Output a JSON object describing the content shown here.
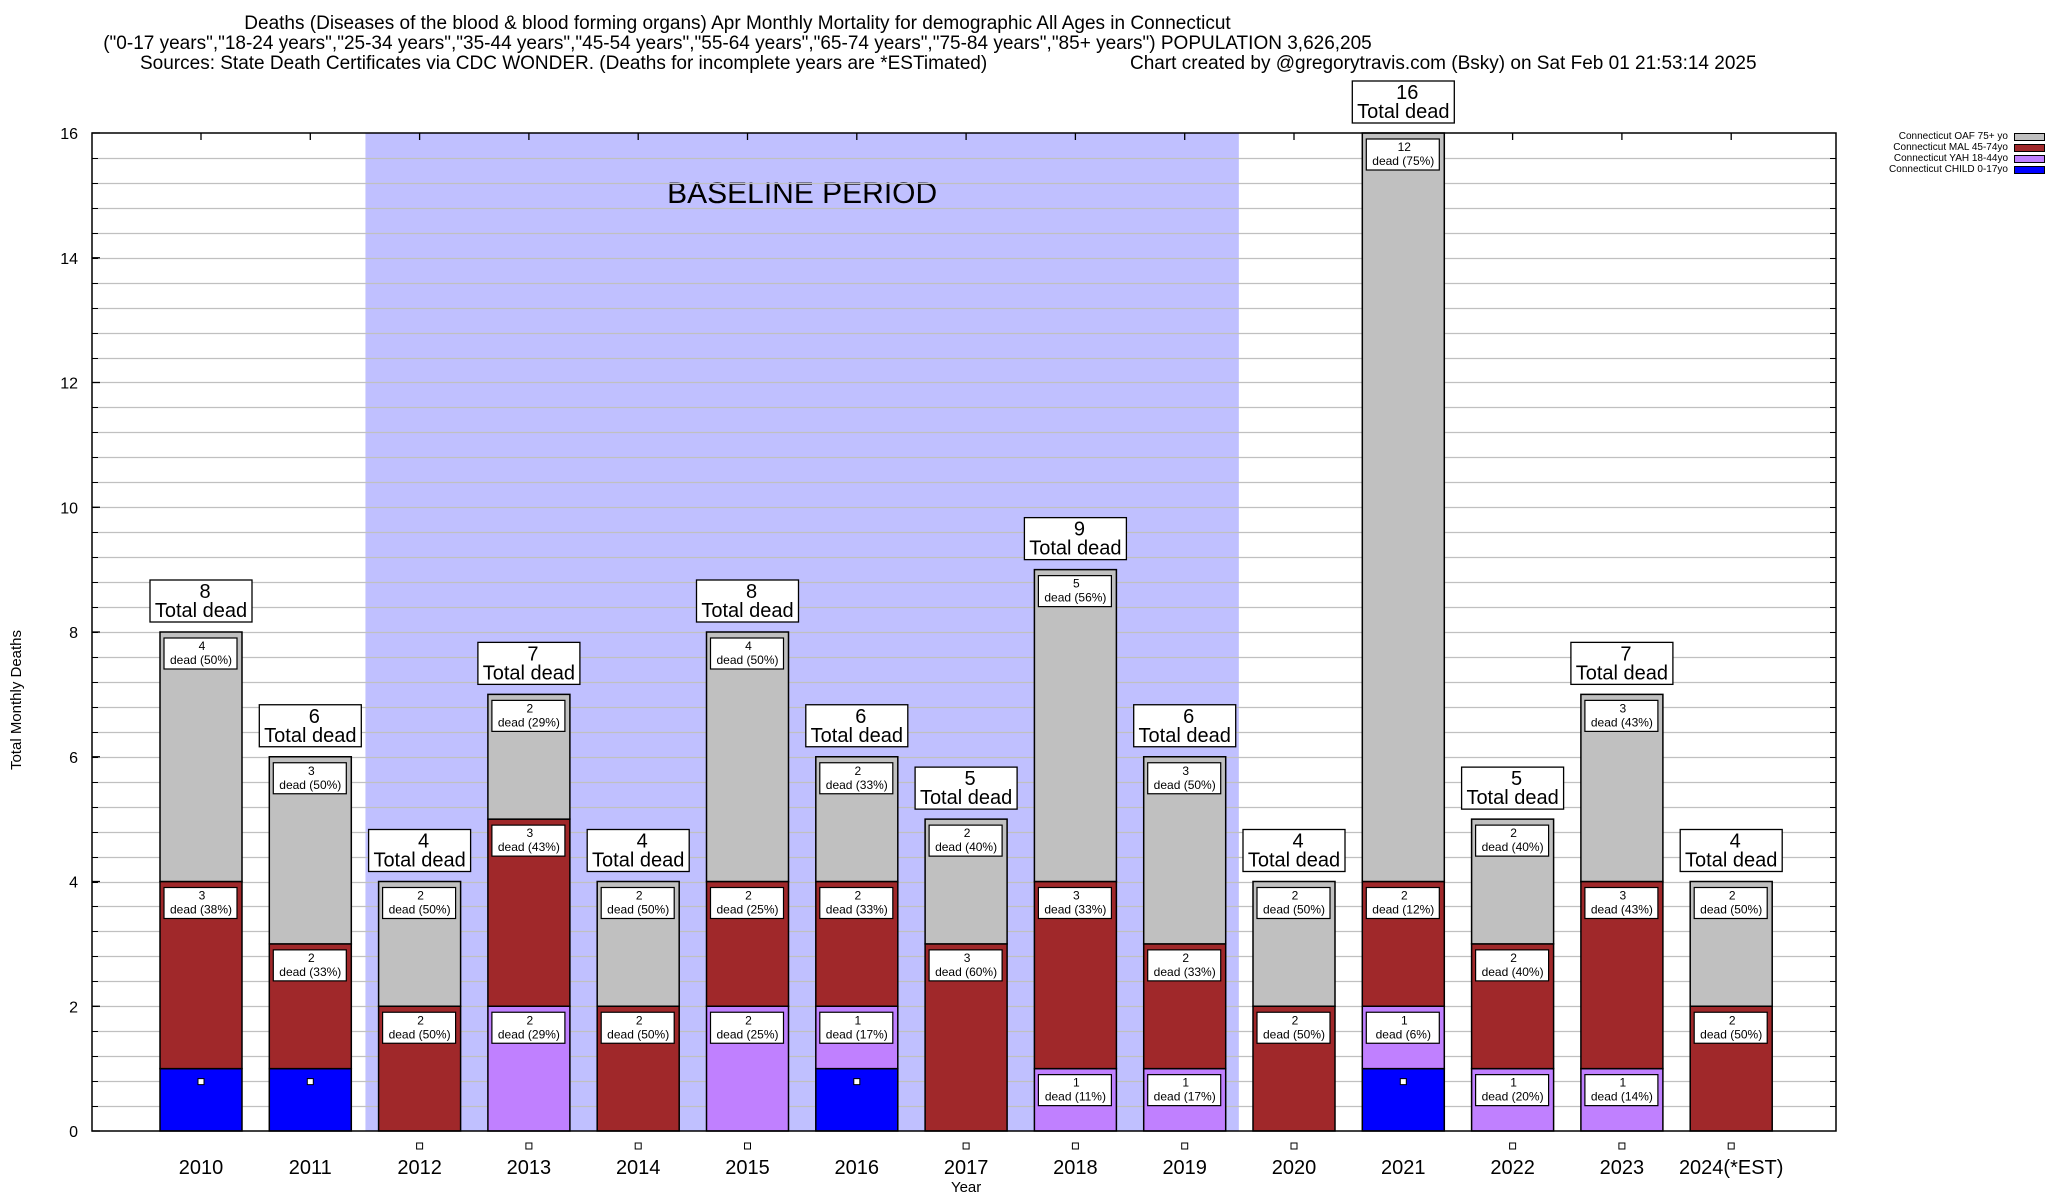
{
  "header": {
    "title_line1": "Deaths (Diseases of the blood & blood forming organs) Apr Monthly Mortality for demographic All Ages in Connecticut",
    "title_line2": "(\"0-17 years\",\"18-24 years\",\"25-34 years\",\"35-44 years\",\"45-54 years\",\"55-64 years\",\"65-74 years\",\"75-84 years\",\"85+ years\") POPULATION 3,626,205",
    "sources": "Sources: State Death Certificates via CDC WONDER. (Deaths for incomplete years are *ESTimated)",
    "credit": "Chart created by @gregorytravis.com (Bsky) on Sat Feb 01 21:53:14 2025"
  },
  "chart_data": {
    "type": "bar",
    "stacked": true,
    "title": "Deaths (Diseases of the blood & blood forming organs) Apr Monthly Mortality for demographic All Ages in Connecticut",
    "xlabel": "Year",
    "ylabel": "Total Monthly Deaths",
    "ylim": [
      0,
      16
    ],
    "yticks": [
      0,
      2,
      4,
      6,
      8,
      10,
      12,
      14,
      16
    ],
    "y_minor_step": 0.4,
    "grid": true,
    "legend_position": "top-right, outside plot",
    "categories": [
      "2010",
      "2011",
      "2012",
      "2013",
      "2014",
      "2015",
      "2016",
      "2017",
      "2018",
      "2019",
      "2020",
      "2021",
      "2022",
      "2023",
      "2024(*EST)"
    ],
    "series": [
      {
        "name": "Connecticut CHILD 0-17yo",
        "color": "#0000ff",
        "values": [
          1,
          1,
          0,
          0,
          0,
          0,
          1,
          0,
          0,
          0,
          0,
          1,
          0,
          0,
          0
        ],
        "labels": [
          "",
          "",
          "",
          "",
          "",
          "",
          "",
          "",
          "",
          "",
          "",
          "",
          "",
          "",
          ""
        ]
      },
      {
        "name": "Connecticut YAH 18-44yo",
        "color": "#c080ff",
        "values": [
          0,
          0,
          0,
          2,
          0,
          2,
          1,
          0,
          1,
          1,
          0,
          1,
          1,
          1,
          0
        ],
        "labels": [
          "",
          "",
          "",
          "2\ndead (29%)",
          "",
          "2\ndead (25%)",
          "1\ndead (17%)",
          "",
          "1\ndead (11%)",
          "1\ndead (17%)",
          "",
          "1\ndead (6%)",
          "1\ndead (20%)",
          "1\ndead (14%)",
          ""
        ]
      },
      {
        "name": "Connecticut MAL 45-74yo",
        "color": "#a0282a",
        "values": [
          3,
          2,
          2,
          3,
          2,
          2,
          2,
          3,
          3,
          2,
          2,
          2,
          2,
          3,
          2
        ],
        "labels": [
          "3\ndead (38%)",
          "2\ndead (33%)",
          "2\ndead (50%)",
          "3\ndead (43%)",
          "2\ndead (50%)",
          "2\ndead (25%)",
          "2\ndead (33%)",
          "3\ndead (60%)",
          "3\ndead (33%)",
          "2\ndead (33%)",
          "2\ndead (50%)",
          "2\ndead (12%)",
          "2\ndead (40%)",
          "3\ndead (43%)",
          "2\ndead (50%)"
        ]
      },
      {
        "name": "Connecticut OAF 75+ yo",
        "color": "#c0c0c0",
        "values": [
          4,
          3,
          2,
          2,
          2,
          4,
          2,
          2,
          5,
          3,
          2,
          12,
          2,
          3,
          2
        ],
        "labels": [
          "4\ndead (50%)",
          "3\ndead (50%)",
          "2\ndead (50%)",
          "2\ndead (29%)",
          "2\ndead (50%)",
          "4\ndead (50%)",
          "2\ndead (33%)",
          "2\ndead (40%)",
          "5\ndead (56%)",
          "3\ndead (50%)",
          "2\ndead (50%)",
          "12\ndead (75%)",
          "2\ndead (40%)",
          "3\ndead (43%)",
          "2\ndead (50%)"
        ]
      }
    ],
    "totals": [
      8,
      6,
      4,
      7,
      4,
      8,
      6,
      5,
      9,
      6,
      4,
      16,
      5,
      7,
      4
    ],
    "total_label_suffix": "Total dead",
    "legend_order": [
      "Connecticut OAF 75+ yo",
      "Connecticut MAL 45-74yo",
      "Connecticut YAH 18-44yo",
      "Connecticut CHILD 0-17yo"
    ],
    "annotations": [
      {
        "text": "BASELINE PERIOD",
        "span_categories": [
          "2012",
          "2019"
        ],
        "color": "#c0c0ff"
      }
    ]
  }
}
